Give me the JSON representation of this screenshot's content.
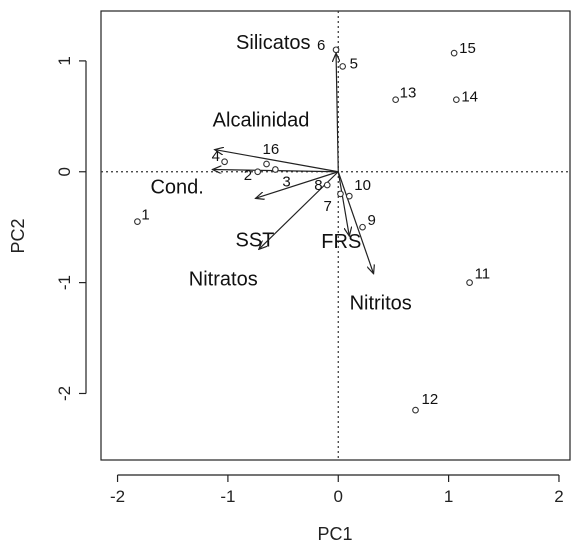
{
  "chart_data": {
    "type": "scatter",
    "subtype": "pca-biplot",
    "xlabel": "PC1",
    "ylabel": "PC2",
    "xlim": [
      -2.15,
      2.1
    ],
    "ylim": [
      -2.6,
      1.45
    ],
    "x_ticks": [
      -2,
      -1,
      0,
      1,
      2
    ],
    "y_ticks": [
      -2,
      -1,
      0,
      1
    ],
    "grid": false,
    "reference_lines": {
      "x": 0,
      "y": 0,
      "style": "dotted"
    },
    "points": [
      {
        "label": "1",
        "x": -1.82,
        "y": -0.45
      },
      {
        "label": "2",
        "x": -0.73,
        "y": 0.0
      },
      {
        "label": "3",
        "x": -0.57,
        "y": 0.02
      },
      {
        "label": "4",
        "x": -1.03,
        "y": 0.09
      },
      {
        "label": "5",
        "x": 0.04,
        "y": 0.95
      },
      {
        "label": "6",
        "x": -0.02,
        "y": 1.1
      },
      {
        "label": "7",
        "x": 0.02,
        "y": -0.2
      },
      {
        "label": "8",
        "x": -0.1,
        "y": -0.12
      },
      {
        "label": "9",
        "x": 0.22,
        "y": -0.5
      },
      {
        "label": "10",
        "x": 0.1,
        "y": -0.22
      },
      {
        "label": "11",
        "x": 1.19,
        "y": -1.0
      },
      {
        "label": "12",
        "x": 0.7,
        "y": -2.15
      },
      {
        "label": "13",
        "x": 0.52,
        "y": 0.65
      },
      {
        "label": "14",
        "x": 1.07,
        "y": 0.65
      },
      {
        "label": "15",
        "x": 1.05,
        "y": 1.07
      },
      {
        "label": "16",
        "x": -0.65,
        "y": 0.07
      }
    ],
    "vectors": [
      {
        "label": "Silicatos",
        "x": -0.02,
        "y": 1.07
      },
      {
        "label": "Alcalinidad",
        "x": -1.12,
        "y": 0.2
      },
      {
        "label": "Cond.",
        "x": -1.14,
        "y": 0.02
      },
      {
        "label": "SST",
        "x": -0.75,
        "y": -0.24
      },
      {
        "label": "Nitratos",
        "x": -0.72,
        "y": -0.7
      },
      {
        "label": "FRS",
        "x": 0.1,
        "y": -0.58
      },
      {
        "label": "Nitritos",
        "x": 0.32,
        "y": -0.92
      }
    ]
  },
  "colors": {
    "axis": "#222222",
    "points": "#333333",
    "vectors": "#222222"
  }
}
